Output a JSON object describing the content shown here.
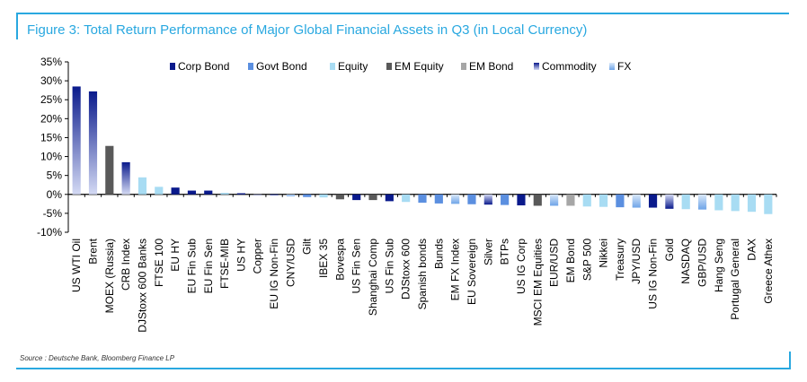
{
  "figure": {
    "title": "Figure 3: Total Return Performance of Major Global Financial Assets in Q3 (in Local Currency)",
    "source": "Source : Deutsche Bank, Bloomberg Finance LP"
  },
  "chart_data": {
    "type": "bar",
    "ylim": [
      -10,
      35
    ],
    "yticks": [
      -10,
      -5,
      0,
      5,
      10,
      15,
      20,
      25,
      30,
      35
    ],
    "ytick_labels": [
      "-10%",
      "-5%",
      "0%",
      "5%",
      "10%",
      "15%",
      "20%",
      "25%",
      "30%",
      "35%"
    ],
    "legend": {
      "position": "top",
      "entries": [
        {
          "name": "Corp Bond",
          "color": "#0a1a8c"
        },
        {
          "name": "Govt Bond",
          "color": "#5b8fe0"
        },
        {
          "name": "Equity",
          "color": "#a8dcf3"
        },
        {
          "name": "EM Equity",
          "color": "#595959"
        },
        {
          "name": "EM Bond",
          "color": "#a6a6a6"
        },
        {
          "name": "Commodity",
          "color": "#0a1a8c",
          "gradient_to": "#c8d0f0"
        },
        {
          "name": "FX",
          "color": "#7fb2ec",
          "gradient_to": "#d6e6f8"
        }
      ]
    },
    "categories": [
      "US WTI Oil",
      "Brent",
      "MOEX (Russia)",
      "CRB Index",
      "DJStoxx 600 Banks",
      "FTSE 100",
      "EU HY",
      "EU Fin Sub",
      "EU Fin Sen",
      "FTSE-MIB",
      "US HY",
      "Copper",
      "EU IG Non-Fin",
      "CNY/USD",
      "Gilt",
      "IBEX 35",
      "Bovespa",
      "US Fin Sen",
      "Shanghai Comp",
      "US Fin Sub",
      "DJStoxx 600",
      "Spanish bonds",
      "Bunds",
      "EM FX Index",
      "EU Sovereign",
      "Silver",
      "BTPs",
      "US IG Corp",
      "MSCI EM Equities",
      "EUR/USD",
      "EM Bond",
      "S&P 500",
      "Nikkei",
      "Treasury",
      "JPY/USD",
      "US IG Non-Fin",
      "Gold",
      "NASDAQ",
      "GBP/USD",
      "Hang Seng",
      "Portugal General",
      "DAX",
      "Greece Athex"
    ],
    "values": [
      28.5,
      27.2,
      12.8,
      8.5,
      4.5,
      2.0,
      1.8,
      1.0,
      1.0,
      0.4,
      0.3,
      -0.1,
      -0.2,
      -0.5,
      -0.7,
      -0.8,
      -1.3,
      -1.5,
      -1.5,
      -1.8,
      -2.0,
      -2.2,
      -2.4,
      -2.5,
      -2.6,
      -2.7,
      -2.8,
      -2.9,
      -3.0,
      -3.0,
      -3.0,
      -3.2,
      -3.3,
      -3.4,
      -3.5,
      -3.5,
      -3.8,
      -3.9,
      -4.0,
      -4.2,
      -4.4,
      -4.6,
      -5.2
    ],
    "asset_class": [
      "Commodity",
      "Commodity",
      "EM Equity",
      "Commodity",
      "Equity",
      "Equity",
      "Corp Bond",
      "Corp Bond",
      "Corp Bond",
      "Equity",
      "Corp Bond",
      "Commodity",
      "Corp Bond",
      "FX",
      "Govt Bond",
      "Equity",
      "EM Equity",
      "Corp Bond",
      "EM Equity",
      "Corp Bond",
      "Equity",
      "Govt Bond",
      "Govt Bond",
      "FX",
      "Govt Bond",
      "Commodity",
      "Govt Bond",
      "Corp Bond",
      "EM Equity",
      "FX",
      "EM Bond",
      "Equity",
      "Equity",
      "Govt Bond",
      "FX",
      "Corp Bond",
      "Commodity",
      "Equity",
      "FX",
      "Equity",
      "Equity",
      "Equity",
      "Equity"
    ],
    "grid": false
  }
}
